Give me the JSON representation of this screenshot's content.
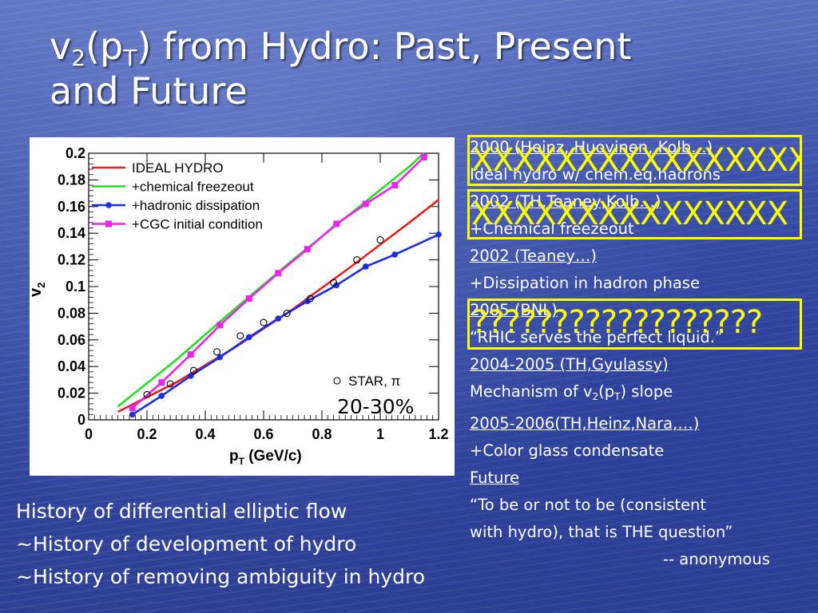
{
  "slide": {
    "title_line1_a": "v",
    "title_line1_sub1": "2",
    "title_line1_b": "(p",
    "title_line1_sub2": "T",
    "title_line1_c": ") from Hydro: Past, Present",
    "title_line2": "and Future"
  },
  "history": [
    {
      "text": "2000 (Heinz, Huovinen, Kolb…)",
      "underline": true
    },
    {
      "text": "Ideal hydro w/ chem.eq.hadrons",
      "underline": false
    },
    {
      "text": "2002 (TH,Teaney,Kolb…)",
      "underline": true
    },
    {
      "text": "+Chemical freezeout",
      "underline": false
    },
    {
      "text": "2002 (Teaney…)",
      "underline": true
    },
    {
      "text": "+Dissipation in hadron phase",
      "underline": false
    },
    {
      "text": "2005 (BNL)",
      "underline": true
    },
    {
      "text": "“RHIC serves the perfect liquid.”",
      "underline": false
    },
    {
      "text": "2004-2005 (TH,Gyulassy)",
      "underline": true
    },
    {
      "text_a": "Mechanism of v",
      "sub_a": "2",
      "text_b": "(p",
      "sub_b": "T",
      "text_c": ") slope"
    },
    {
      "text": "2005-2006(TH,Heinz,Nara,…)",
      "underline": true
    },
    {
      "text": "+Color glass condensate",
      "underline": false
    },
    {
      "text": "Future",
      "underline": true
    },
    {
      "text": "“To be or not to be (consistent",
      "underline": false
    },
    {
      "text": "with hydro), that is THE question”",
      "underline": false
    },
    {
      "text": "-- anonymous",
      "underline": false
    }
  ],
  "overlays": {
    "box1": "XXXXXXXXXXXXXXXX",
    "box2": "XXXXXXXXXXXXXXX",
    "box3": "??????????????????"
  },
  "bottom": {
    "line1": "History of differential elliptic flow",
    "line2": "~History of development of hydro",
    "line3": "~History of removing ambiguity in hydro"
  },
  "chart_data": {
    "type": "line",
    "xlabel_main": "p",
    "xlabel_sub": "T",
    "xlabel_rest": " (GeV/c)",
    "ylabel_main": "v",
    "ylabel_sub": "2",
    "xlim": [
      0,
      1.2
    ],
    "ylim": [
      0,
      0.2
    ],
    "xticks": [
      "0",
      "0.2",
      "0.4",
      "0.6",
      "0.8",
      "1",
      "1.2"
    ],
    "yticks": [
      "0",
      "0.02",
      "0.04",
      "0.06",
      "0.08",
      "0.1",
      "0.12",
      "0.14",
      "0.16",
      "0.18",
      "0.2"
    ],
    "annotation": "20-30%",
    "series": [
      {
        "name": "IDEAL HYDRO",
        "color": "#e8201a",
        "marker": "none",
        "x": [
          0.1,
          0.3,
          0.5,
          0.7,
          0.9,
          1.1,
          1.2
        ],
        "y": [
          0.006,
          0.028,
          0.054,
          0.083,
          0.115,
          0.148,
          0.165
        ]
      },
      {
        "name": "+chemical freezeout",
        "color": "#22dd22",
        "marker": "none",
        "x": [
          0.1,
          0.3,
          0.5,
          0.7,
          0.9,
          1.1,
          1.15
        ],
        "y": [
          0.01,
          0.045,
          0.083,
          0.12,
          0.155,
          0.19,
          0.2
        ]
      },
      {
        "name": "+hadronic dissipation",
        "color": "#1a2ee0",
        "marker": "circle",
        "x": [
          0.15,
          0.25,
          0.35,
          0.45,
          0.55,
          0.65,
          0.75,
          0.85,
          0.95,
          1.05,
          1.2
        ],
        "y": [
          0.004,
          0.018,
          0.033,
          0.047,
          0.062,
          0.076,
          0.089,
          0.101,
          0.115,
          0.124,
          0.139
        ]
      },
      {
        "name": "+CGC initial condition",
        "color": "#ee22ee",
        "marker": "square",
        "x": [
          0.15,
          0.25,
          0.35,
          0.45,
          0.55,
          0.65,
          0.75,
          0.85,
          0.95,
          1.05,
          1.15
        ],
        "y": [
          0.009,
          0.028,
          0.049,
          0.071,
          0.091,
          0.11,
          0.128,
          0.147,
          0.162,
          0.176,
          0.197
        ]
      },
      {
        "name": "STAR, π",
        "color": "#000000",
        "marker": "open-circle",
        "x": [
          0.2,
          0.28,
          0.36,
          0.44,
          0.52,
          0.6,
          0.68,
          0.76,
          0.84,
          0.92,
          1.0
        ],
        "y": [
          0.019,
          0.027,
          0.037,
          0.051,
          0.063,
          0.073,
          0.08,
          0.091,
          0.103,
          0.12,
          0.135
        ]
      }
    ]
  }
}
